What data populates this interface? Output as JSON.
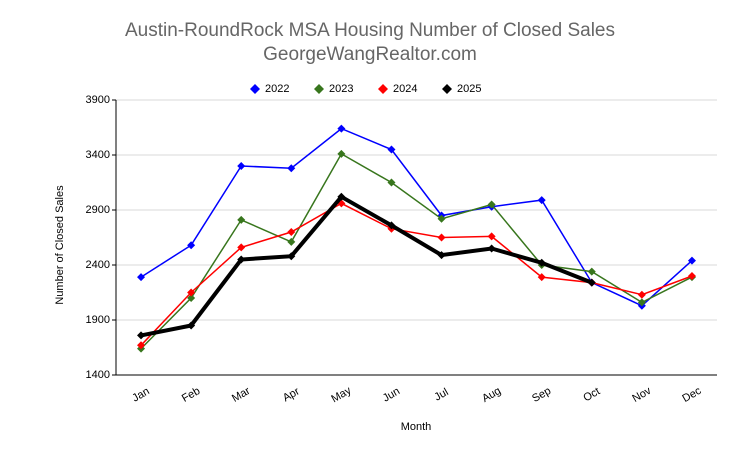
{
  "chart_data": {
    "type": "line",
    "title": "Austin-RoundRock MSA Housing Number of Closed Sales",
    "subtitle": "GeorgeWangRealtor.com",
    "x_label": "Month",
    "y_label": "Number of Closed Sales",
    "categories": [
      "Jan",
      "Feb",
      "Mar",
      "Apr",
      "May",
      "Jun",
      "Jul",
      "Aug",
      "Sep",
      "Oct",
      "Nov",
      "Dec"
    ],
    "ylim": [
      1400,
      3900
    ],
    "yticks": [
      1400,
      1900,
      2400,
      2900,
      3400,
      3900
    ],
    "grid": true,
    "series": [
      {
        "name": "2022",
        "color": "#0000ff",
        "values": [
          2290,
          2580,
          3300,
          3280,
          3640,
          3450,
          2850,
          2930,
          2990,
          2240,
          2030,
          2440
        ]
      },
      {
        "name": "2023",
        "color": "#38761d",
        "values": [
          1640,
          2100,
          2810,
          2610,
          3410,
          3150,
          2820,
          2950,
          2400,
          2340,
          2060,
          2290
        ]
      },
      {
        "name": "2024",
        "color": "#ff0000",
        "values": [
          1670,
          2150,
          2560,
          2700,
          2960,
          2730,
          2650,
          2660,
          2290,
          2240,
          2130,
          2300
        ]
      },
      {
        "name": "2025",
        "color": "#000000",
        "values": [
          1760,
          1850,
          2450,
          2480,
          3020,
          2760,
          2490,
          2550,
          2420,
          2240,
          null,
          null
        ]
      }
    ]
  }
}
